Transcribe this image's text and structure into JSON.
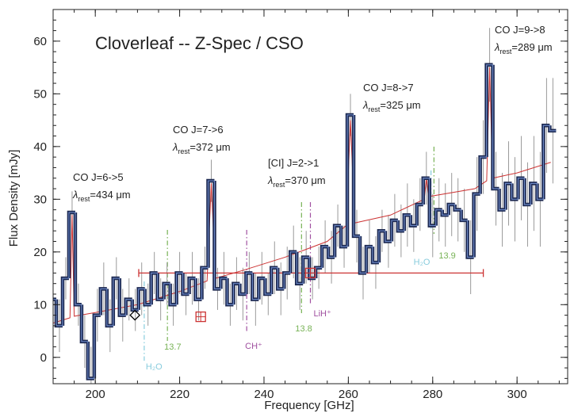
{
  "chart_data": {
    "type": "step",
    "title": "Cloverleaf -- Z-Spec / CSO",
    "x_label": "Frequency [GHz]",
    "y_label": "Flux Density [mJy]",
    "xlim": [
      190,
      312
    ],
    "ylim": [
      -5,
      66
    ],
    "xticks": [
      200,
      220,
      240,
      260,
      280,
      300
    ],
    "yticks": [
      0,
      10,
      20,
      30,
      40,
      50,
      60
    ],
    "x_minor_step": 5,
    "y_minor_step": 2,
    "spectrum": {
      "color": "#1c2850",
      "error_color": "#9a9a9a",
      "x": [
        190,
        191.5,
        193,
        194.5,
        196,
        197.5,
        199,
        200.5,
        202,
        203.5,
        205,
        206.5,
        208,
        209.5,
        211,
        212.5,
        214,
        215.5,
        217,
        218.5,
        220,
        221.5,
        223,
        224.5,
        226,
        227.5,
        229,
        230.5,
        232,
        233.5,
        235,
        236.5,
        238,
        239.5,
        241,
        242.5,
        244,
        245.5,
        247,
        248.5,
        250,
        251.5,
        253,
        254.5,
        256,
        257.5,
        259,
        260.5,
        262,
        263.5,
        265,
        266.5,
        268,
        269.5,
        271,
        272.5,
        274,
        275.5,
        277,
        278.5,
        280,
        281.5,
        283,
        284.5,
        286,
        287.5,
        289,
        290.5,
        292,
        293.5,
        295,
        296.5,
        298,
        299.5,
        301,
        302.5,
        304,
        305.5,
        307,
        308.5
      ],
      "values": [
        11,
        6,
        15,
        27.5,
        10,
        3,
        -4,
        8,
        13,
        6,
        15,
        8,
        11,
        9,
        13,
        10,
        16,
        11,
        14,
        10,
        16,
        12,
        15,
        11,
        17,
        33.5,
        13,
        15,
        10,
        14,
        12,
        16,
        11,
        15,
        12,
        17,
        13,
        16,
        20,
        14,
        19,
        15,
        17,
        21,
        19,
        25,
        21,
        46,
        23,
        16,
        21,
        18,
        24,
        22,
        26,
        24,
        27,
        25,
        29,
        34,
        25,
        28,
        27,
        29,
        28,
        26,
        19,
        31,
        38,
        55.5,
        32,
        28,
        33,
        30,
        34,
        29,
        33,
        30,
        44,
        43
      ],
      "errors": [
        5,
        5,
        4,
        4,
        4,
        5,
        6,
        5,
        5,
        5,
        4,
        5,
        4,
        4,
        5,
        4,
        4,
        4,
        4,
        4,
        4,
        4,
        5,
        4,
        4,
        4,
        4,
        5,
        4,
        5,
        5,
        4,
        5,
        5,
        4,
        5,
        5,
        5,
        5,
        5,
        5,
        4,
        4,
        5,
        5,
        4,
        4,
        4,
        5,
        5,
        5,
        5,
        4,
        5,
        5,
        5,
        6,
        5,
        5,
        5,
        6,
        6,
        6,
        6,
        6,
        6,
        7,
        7,
        7,
        7,
        7,
        7,
        8,
        8,
        8,
        8,
        9,
        9,
        9,
        10
      ]
    },
    "model": {
      "color": "#cc3333",
      "x": [
        190,
        194,
        194.5,
        195,
        200,
        210,
        220,
        226.5,
        227.5,
        228.5,
        235,
        245,
        255,
        259.5,
        260.5,
        261.5,
        270,
        278,
        278.5,
        279,
        290,
        292.8,
        293.5,
        294.2,
        300,
        308
      ],
      "values": [
        6.5,
        7.5,
        27,
        7.8,
        8.5,
        10,
        12.5,
        14.5,
        33,
        15,
        16.5,
        19,
        22,
        25,
        45,
        25.5,
        27,
        30,
        34,
        30.5,
        32,
        33.5,
        55,
        34,
        35,
        37
      ]
    },
    "points": [
      {
        "x": 251,
        "y": 16,
        "x_range": [
          210.3,
          292
        ],
        "marker": "square",
        "color": "#cc3333"
      },
      {
        "x": 225,
        "y": 7.7,
        "marker": "square",
        "color": "#cc3333"
      },
      {
        "x": 209.4,
        "y": 8,
        "marker": "diamond",
        "color": "#000000"
      }
    ],
    "line_labels": [
      {
        "line": "CO J=6->5",
        "symbol": "λ",
        "sub": "rest",
        "wavelength": "=434 μm"
      },
      {
        "line": "CO J=7->6",
        "symbol": "λ",
        "sub": "rest",
        "wavelength": "=372 μm"
      },
      {
        "line": "[CI] J=2->1",
        "symbol": "λ",
        "sub": "rest",
        "wavelength": "=370 μm"
      },
      {
        "line": "CO J=8->7",
        "symbol": "λ",
        "sub": "rest",
        "wavelength": "=325 μm"
      },
      {
        "line": "CO J=9->8",
        "symbol": "λ",
        "sub": "rest",
        "wavelength": "=289 μm"
      }
    ],
    "markers": [
      {
        "x": 217.1,
        "label": "13.7",
        "color": "#77b255"
      },
      {
        "x": 211.6,
        "label": "H₂O",
        "color": "#88ccdd"
      },
      {
        "x": 235.9,
        "label": "CH⁺",
        "color": "#a050a0"
      },
      {
        "x": 248.9,
        "label": "13.8",
        "color": "#77b255"
      },
      {
        "x": 251,
        "label": "LiH⁺",
        "color": "#a050a0"
      },
      {
        "x": 279.6,
        "label": "H₂O",
        "color": "#88ccdd"
      },
      {
        "x": 280.3,
        "label": "13.9",
        "color": "#77b255"
      }
    ]
  }
}
